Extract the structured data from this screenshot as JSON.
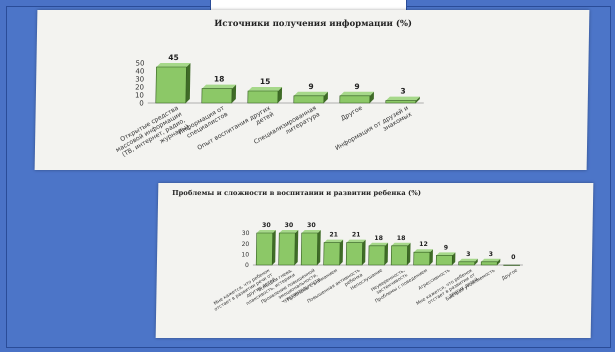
{
  "slide": {
    "background": "#4a72c6"
  },
  "chart_data": [
    {
      "type": "bar",
      "title": "Источники получения информации (%)",
      "categories": [
        "Открытые средства массовой информации (ТВ, интернет, радио, журналы)",
        "Информация от специалистов",
        "Опыт воспитания других детей",
        "Специализированная литература",
        "Другое",
        "Информация от друзей и знакомых"
      ],
      "values": [
        45,
        18,
        15,
        9,
        9,
        3
      ],
      "yticks": [
        0,
        10,
        20,
        30,
        40,
        50
      ],
      "ylim": [
        0,
        50
      ],
      "bar_color": "#8cc867",
      "grid": false
    },
    {
      "type": "bar",
      "title": "Проблемы и сложности в воспитании и развитии ребенка (%)",
      "categories": [
        "Мне кажется, что ребенок отстает в развитии речи от других детей",
        "Вспышки гнева, плаксивость, истерики",
        "Проявление повышенной эмоциональности, чувствительности",
        "Проблемы с вниманием",
        "Повышенная активность ребенка",
        "Непослушание",
        "Неуверенность, застенчивость",
        "Проблемы с поведением",
        "Агрессивность",
        "Мне кажется, что ребенок отстает в развитии от других детей",
        "Быстрая утомляемость",
        "Другое"
      ],
      "values": [
        30,
        30,
        30,
        21,
        21,
        18,
        18,
        12,
        9,
        3,
        3,
        0
      ],
      "yticks": [
        0,
        10,
        20,
        30
      ],
      "ylim": [
        0,
        30
      ],
      "bar_color": "#8cc867",
      "grid": false
    }
  ]
}
